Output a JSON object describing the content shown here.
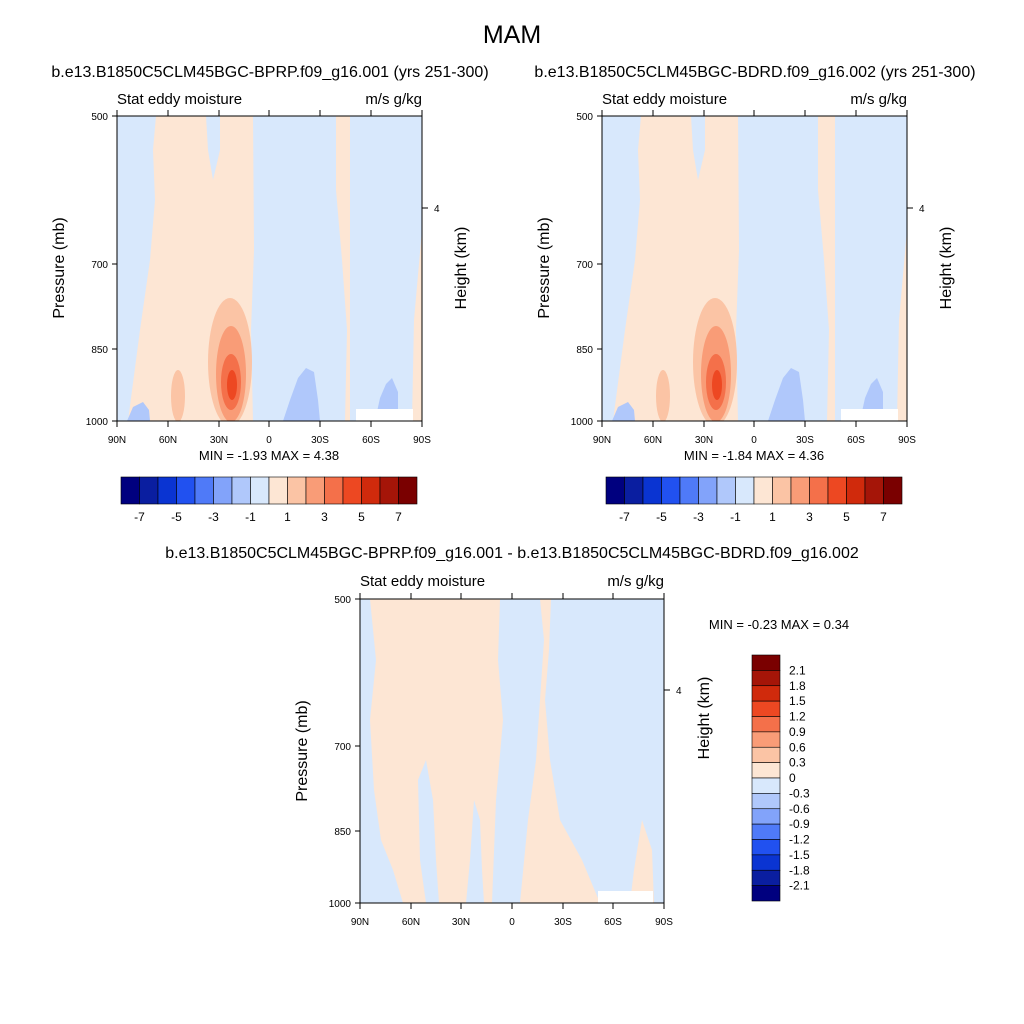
{
  "page": {
    "season": "MAM"
  },
  "chart_data": [
    {
      "type": "heatmap",
      "id": "panel-1",
      "case_title": "b.e13.B1850C5CLM45BGC-BPRP.f09_g16.001 (yrs 251-300)",
      "left_title": "Stat eddy moisture",
      "right_title": "m/s g/kg",
      "xlabel": "",
      "ylabel": "Pressure (mb)",
      "ylabel_right": "Height (km)",
      "x_ticks": [
        "90N",
        "60N",
        "30N",
        "0",
        "30S",
        "60S",
        "90S"
      ],
      "x_range": [
        90,
        -90
      ],
      "y_ticks": [
        "500",
        "700",
        "850",
        "1000"
      ],
      "y_tick_values": [
        500,
        700,
        850,
        1000
      ],
      "y_range": [
        500,
        1000
      ],
      "y_scale": "log",
      "right_ticks": [
        "4"
      ],
      "right_tick_values_mb": [
        616
      ],
      "min_label": "MIN =  -1.93  MAX =   4.38",
      "min": -1.93,
      "max": 4.38,
      "contour_levels": [
        -7,
        -6,
        -5,
        -4,
        -3,
        -2,
        -1,
        0,
        1,
        2,
        3,
        4,
        5,
        6,
        7
      ],
      "colorbar_labels": [
        "-7",
        "-5",
        "-3",
        "-1",
        "1",
        "3",
        "5",
        "7"
      ],
      "colorbar_orientation": "horizontal",
      "features": [
        {
          "lat": 24,
          "p_range": [
            835,
            1000
          ],
          "peak": 4.38,
          "note": "positive maximum near 25N in lower troposphere"
        },
        {
          "lat": -35,
          "p_range": [
            940,
            1000
          ],
          "peak": -1.93,
          "note": "negative minimum near 35S at surface"
        }
      ]
    },
    {
      "type": "heatmap",
      "id": "panel-2",
      "case_title": "b.e13.B1850C5CLM45BGC-BDRD.f09_g16.002 (yrs 251-300)",
      "left_title": "Stat eddy moisture",
      "right_title": "m/s g/kg",
      "ylabel": "Pressure (mb)",
      "ylabel_right": "Height (km)",
      "x_ticks": [
        "90N",
        "60N",
        "30N",
        "0",
        "30S",
        "60S",
        "90S"
      ],
      "x_range": [
        90,
        -90
      ],
      "y_ticks": [
        "500",
        "700",
        "850",
        "1000"
      ],
      "y_tick_values": [
        500,
        700,
        850,
        1000
      ],
      "y_range": [
        500,
        1000
      ],
      "y_scale": "log",
      "right_ticks": [
        "4"
      ],
      "right_tick_values_mb": [
        616
      ],
      "min_label": "MIN =  -1.84  MAX =   4.36",
      "min": -1.84,
      "max": 4.36,
      "contour_levels": [
        -7,
        -6,
        -5,
        -4,
        -3,
        -2,
        -1,
        0,
        1,
        2,
        3,
        4,
        5,
        6,
        7
      ],
      "colorbar_labels": [
        "-7",
        "-5",
        "-3",
        "-1",
        "1",
        "3",
        "5",
        "7"
      ],
      "colorbar_orientation": "horizontal",
      "features": [
        {
          "lat": 24,
          "p_range": [
            835,
            1000
          ],
          "peak": 4.36,
          "note": "positive maximum near 25N in lower troposphere"
        },
        {
          "lat": -35,
          "p_range": [
            940,
            1000
          ],
          "peak": -1.84,
          "note": "negative minimum near 35S at surface"
        }
      ]
    },
    {
      "type": "heatmap",
      "id": "panel-diff",
      "case_title": "b.e13.B1850C5CLM45BGC-BPRP.f09_g16.001 - b.e13.B1850C5CLM45BGC-BDRD.f09_g16.002",
      "left_title": "Stat eddy moisture",
      "right_title": "m/s g/kg",
      "ylabel": "Pressure (mb)",
      "ylabel_right": "Height (km)",
      "x_ticks": [
        "90N",
        "60N",
        "30N",
        "0",
        "30S",
        "60S",
        "90S"
      ],
      "x_range": [
        90,
        -90
      ],
      "y_ticks": [
        "500",
        "700",
        "850",
        "1000"
      ],
      "y_tick_values": [
        500,
        700,
        850,
        1000
      ],
      "y_range": [
        500,
        1000
      ],
      "y_scale": "log",
      "right_ticks": [
        "4"
      ],
      "right_tick_values_mb": [
        616
      ],
      "min_label": "MIN =  -0.23  MAX =   0.34",
      "min": -0.23,
      "max": 0.34,
      "contour_levels": [
        -2.1,
        -1.8,
        -1.5,
        -1.2,
        -0.9,
        -0.6,
        -0.3,
        0,
        0.3,
        0.6,
        0.9,
        1.2,
        1.5,
        1.8,
        2.1
      ],
      "colorbar_labels": [
        "2.1",
        "1.8",
        "1.5",
        "1.2",
        "0.9",
        "0.6",
        "0.3",
        "0",
        "-0.3",
        "-0.6",
        "-0.9",
        "-1.2",
        "-1.5",
        "-1.8",
        "-2.1"
      ],
      "colorbar_orientation": "vertical"
    }
  ],
  "colors": {
    "palette": [
      "#00007f",
      "#0a1ea0",
      "#0a34d2",
      "#2151f0",
      "#4f7af8",
      "#82a3fa",
      "#b0c8fb",
      "#d8e8fc",
      "#fde6d4",
      "#fbc4a5",
      "#f99c77",
      "#f4704a",
      "#ed4822",
      "#d02a0c",
      "#a51508",
      "#7a0000"
    ],
    "bg_positive": "#fde6d4",
    "bg_negative": "#d8e8fc",
    "light_blue": "#b0c8fb",
    "missing": "#ffffff"
  }
}
